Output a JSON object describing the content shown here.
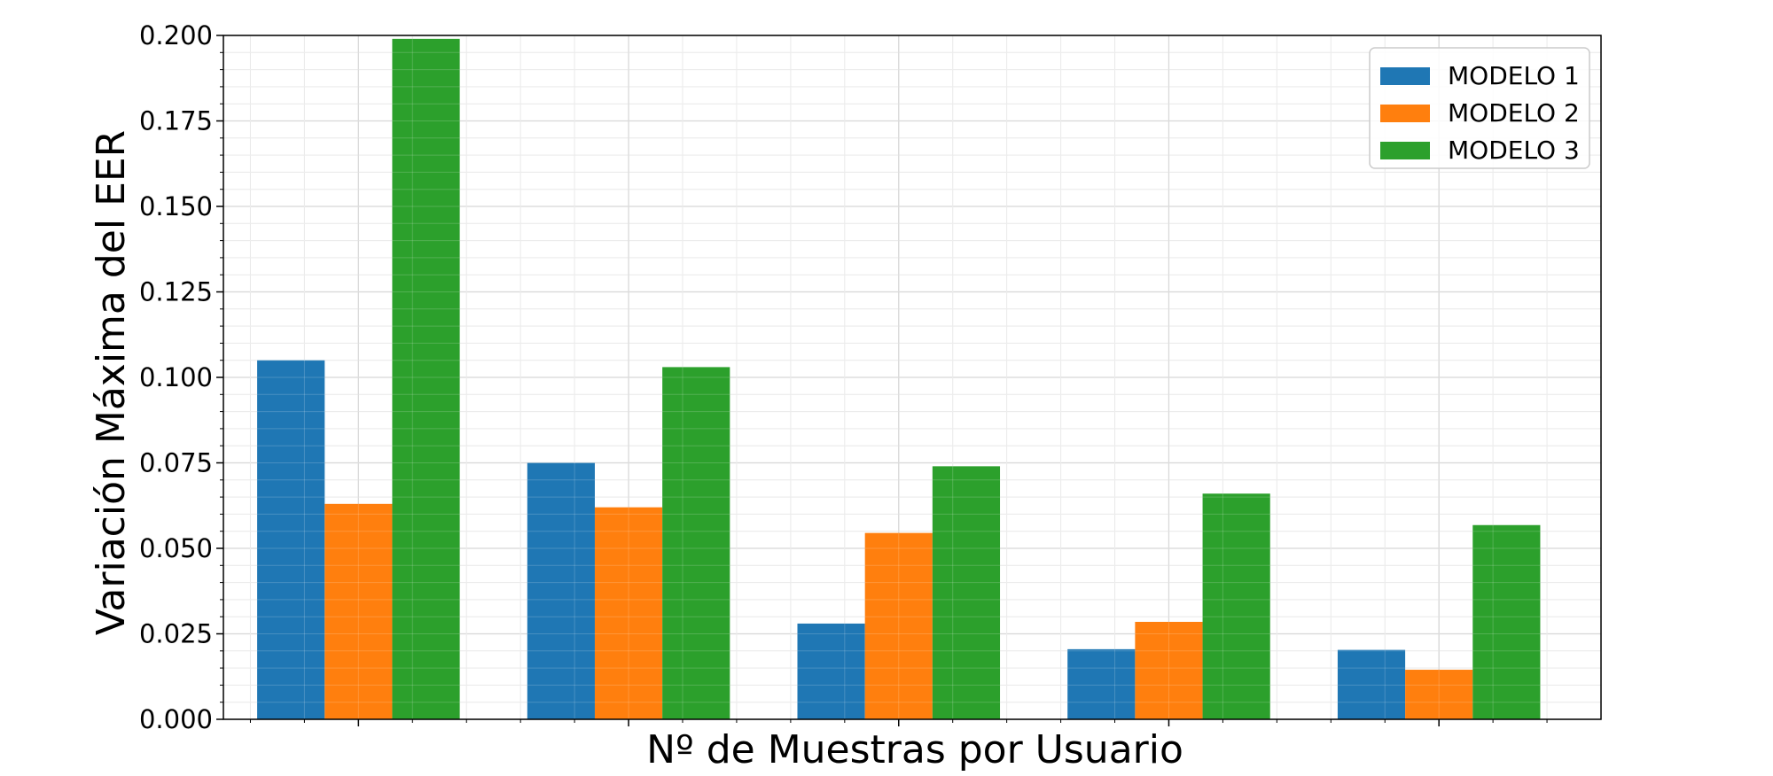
{
  "chart_data": {
    "type": "bar",
    "title": "",
    "xlabel": "Nº de Muestras por Usuario",
    "ylabel": "Variación Máxima del EER",
    "ylim": [
      0,
      0.2
    ],
    "yticks": [
      "0.000",
      "0.025",
      "0.050",
      "0.075",
      "0.100",
      "0.125",
      "0.150",
      "0.175",
      "0.200"
    ],
    "categories": [
      "",
      "",
      "",
      "",
      ""
    ],
    "series": [
      {
        "name": "MODELO 1",
        "color": "#1f77b4",
        "values": [
          0.105,
          0.075,
          0.028,
          0.0205,
          0.0203
        ]
      },
      {
        "name": "MODELO 2",
        "color": "#ff7f0e",
        "values": [
          0.063,
          0.062,
          0.0545,
          0.0285,
          0.0145
        ]
      },
      {
        "name": "MODELO 3",
        "color": "#2ca02c",
        "values": [
          0.199,
          0.103,
          0.074,
          0.066,
          0.0568
        ]
      }
    ],
    "grid": true,
    "minor_grid": true,
    "legend_position": "top-right"
  }
}
